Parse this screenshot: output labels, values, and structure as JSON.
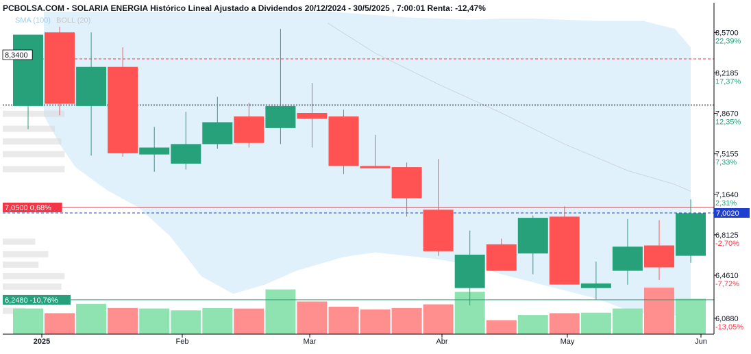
{
  "chart_data": {
    "type": "candlestick",
    "title": "PCBOLSA.COM - SOLARIA ENERGIA Histórico Lineal Ajustado a Dividendos 20/12/2024 - 30/5/2025 , 7:00:01 Renta: -12,47%",
    "legend": [
      {
        "label": "SMA (100)",
        "color": "#9ecfee"
      },
      {
        "label": "BOLL (20)",
        "color": "#c6c6c6"
      }
    ],
    "colors": {
      "up": "#26a17a",
      "down": "#ff5252",
      "up_vol": "#8fe3b0",
      "down_vol": "#ff8e8e",
      "band": "#e1f1fc",
      "sma": "#cfd4da"
    },
    "ylim": [
      5.95,
      8.75
    ],
    "y_ticks": [
      {
        "value": 8.57,
        "label": "8,5700",
        "pct": "22,39%"
      },
      {
        "value": 8.2185,
        "label": "8,2185",
        "pct": "17,37%"
      },
      {
        "value": 7.867,
        "label": "7,8670",
        "pct": "12,35%"
      },
      {
        "value": 7.5155,
        "label": "7,5155",
        "pct": "7,33%"
      },
      {
        "value": 7.164,
        "label": "7,1640",
        "pct": "2,31%"
      },
      {
        "value": 6.8125,
        "label": "6,8125",
        "pct": "-2,70%"
      },
      {
        "value": 6.461,
        "label": "6,4610",
        "pct": "-7,72%"
      },
      {
        "value": 6.088,
        "label": "6,0880",
        "pct": "-13,05%"
      }
    ],
    "x_ticks": [
      "2025",
      "Feb",
      "Mar",
      "Abr",
      "May",
      "Jun"
    ],
    "reference_lines": [
      {
        "label": "8,3400",
        "value": 8.34,
        "style": "red-dashed"
      },
      {
        "label": "",
        "value": 7.94,
        "style": "black-dotted"
      },
      {
        "label": "7,0500  0,68%",
        "value": 7.05,
        "style": "red-solid"
      },
      {
        "label": "7,0020",
        "value": 7.002,
        "style": "blue-dashed"
      },
      {
        "label": "6,2480  -10,76%",
        "value": 6.248,
        "style": "green-solid"
      }
    ],
    "candles": [
      {
        "o": 7.93,
        "h": 8.55,
        "l": 7.73,
        "c": 8.55
      },
      {
        "o": 8.57,
        "h": 8.62,
        "l": 7.85,
        "c": 7.95
      },
      {
        "o": 7.93,
        "h": 8.57,
        "l": 7.5,
        "c": 8.27
      },
      {
        "o": 8.27,
        "h": 8.44,
        "l": 7.49,
        "c": 7.52
      },
      {
        "o": 7.51,
        "h": 7.75,
        "l": 7.36,
        "c": 7.57
      },
      {
        "o": 7.43,
        "h": 7.88,
        "l": 7.38,
        "c": 7.6
      },
      {
        "o": 7.6,
        "h": 8.01,
        "l": 7.56,
        "c": 7.79
      },
      {
        "o": 7.84,
        "h": 7.96,
        "l": 7.57,
        "c": 7.61
      },
      {
        "o": 7.74,
        "h": 8.6,
        "l": 7.6,
        "c": 7.93
      },
      {
        "o": 7.87,
        "h": 8.13,
        "l": 7.57,
        "c": 7.82
      },
      {
        "o": 7.84,
        "h": 7.9,
        "l": 7.34,
        "c": 7.41
      },
      {
        "o": 7.41,
        "h": 7.68,
        "l": 7.39,
        "c": 7.39
      },
      {
        "o": 7.4,
        "h": 7.44,
        "l": 6.97,
        "c": 7.13
      },
      {
        "o": 7.03,
        "h": 7.47,
        "l": 6.63,
        "c": 6.67
      },
      {
        "o": 6.35,
        "h": 6.85,
        "l": 6.2,
        "c": 6.64
      },
      {
        "o": 6.73,
        "h": 6.78,
        "l": 6.52,
        "c": 6.5
      },
      {
        "o": 6.65,
        "h": 6.98,
        "l": 6.47,
        "c": 6.96
      },
      {
        "o": 6.97,
        "h": 7.06,
        "l": 6.38,
        "c": 6.38
      },
      {
        "o": 6.35,
        "h": 6.58,
        "l": 6.25,
        "c": 6.39
      },
      {
        "o": 6.5,
        "h": 6.95,
        "l": 6.38,
        "c": 6.71
      },
      {
        "o": 6.72,
        "h": 6.94,
        "l": 6.42,
        "c": 6.53
      },
      {
        "o": 6.63,
        "h": 7.12,
        "l": 6.57,
        "c": 7.0
      }
    ],
    "volume": [
      0.55,
      0.45,
      0.65,
      0.56,
      0.55,
      0.51,
      0.56,
      0.55,
      0.96,
      0.7,
      0.59,
      0.53,
      0.56,
      0.64,
      0.91,
      0.3,
      0.41,
      0.45,
      0.46,
      0.55,
      1.0,
      0.76
    ],
    "boll_upper": [
      {
        "t": 0.5,
        "v": 8.75
      },
      {
        "t": 4,
        "v": 8.75
      },
      {
        "t": 8,
        "v": 8.75
      },
      {
        "t": 9.6,
        "v": 8.75
      },
      {
        "t": 12,
        "v": 8.7
      },
      {
        "t": 14,
        "v": 8.68
      },
      {
        "t": 15,
        "v": 8.69
      },
      {
        "t": 16,
        "v": 8.69
      },
      {
        "t": 18,
        "v": 8.67
      },
      {
        "t": 19.5,
        "v": 8.67
      },
      {
        "t": 20.5,
        "v": 8.6
      },
      {
        "t": 21,
        "v": 8.44
      }
    ],
    "boll_lower": [
      {
        "t": 0.5,
        "v": 7.85
      },
      {
        "t": 1,
        "v": 7.6
      },
      {
        "t": 1.5,
        "v": 7.4
      },
      {
        "t": 2.5,
        "v": 7.2
      },
      {
        "t": 3.5,
        "v": 7.05
      },
      {
        "t": 4.5,
        "v": 6.8
      },
      {
        "t": 5.5,
        "v": 6.45
      },
      {
        "t": 6.5,
        "v": 6.3
      },
      {
        "t": 7.5,
        "v": 6.38
      },
      {
        "t": 8.5,
        "v": 6.5
      },
      {
        "t": 10,
        "v": 6.62
      },
      {
        "t": 11,
        "v": 6.66
      },
      {
        "t": 12,
        "v": 6.63
      },
      {
        "t": 13,
        "v": 6.6
      },
      {
        "t": 14,
        "v": 6.55
      },
      {
        "t": 15,
        "v": 6.47
      },
      {
        "t": 16,
        "v": 6.4
      },
      {
        "t": 17,
        "v": 6.33
      },
      {
        "t": 18,
        "v": 6.26
      },
      {
        "t": 19,
        "v": 6.16
      },
      {
        "t": 20,
        "v": 6.1
      },
      {
        "t": 21,
        "v": 6.12
      }
    ],
    "sma_line": [
      {
        "t": 9.5,
        "v": 8.65
      },
      {
        "t": 11,
        "v": 8.39
      },
      {
        "t": 13,
        "v": 8.12
      },
      {
        "t": 15,
        "v": 7.87
      },
      {
        "t": 17,
        "v": 7.6
      },
      {
        "t": 19,
        "v": 7.37
      },
      {
        "t": 20.5,
        "v": 7.25
      },
      {
        "t": 21,
        "v": 7.19
      }
    ],
    "volume_profile": [
      {
        "price": 7.86,
        "size": 0.95
      },
      {
        "price": 7.73,
        "size": 0.8
      },
      {
        "price": 7.62,
        "size": 0.9
      },
      {
        "price": 7.51,
        "size": 0.95
      },
      {
        "price": 7.38,
        "size": 0.95
      },
      {
        "price": 6.75,
        "size": 0.5
      },
      {
        "price": 6.64,
        "size": 0.7
      },
      {
        "price": 6.55,
        "size": 0.55
      },
      {
        "price": 6.45,
        "size": 0.95
      },
      {
        "price": 6.36,
        "size": 0.9
      },
      {
        "price": 6.26,
        "size": 0.85
      },
      {
        "price": 6.15,
        "size": 0.35
      }
    ]
  }
}
